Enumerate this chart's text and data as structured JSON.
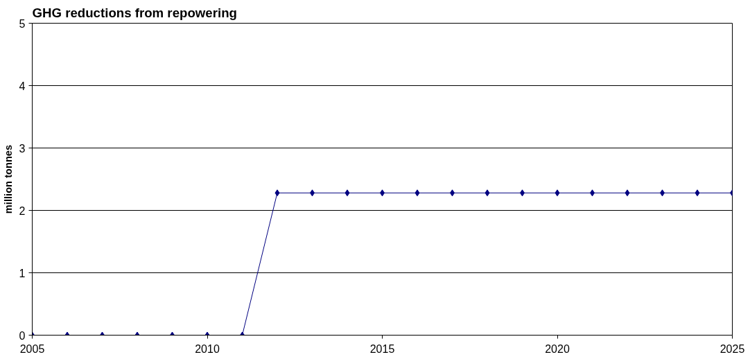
{
  "chart_data": {
    "type": "line",
    "title": "GHG reductions from repowering",
    "ylabel": "million tonnes",
    "x": [
      2005,
      2006,
      2007,
      2008,
      2009,
      2010,
      2011,
      2012,
      2013,
      2014,
      2015,
      2016,
      2017,
      2018,
      2019,
      2020,
      2021,
      2022,
      2023,
      2024,
      2025
    ],
    "series": [
      {
        "color": "#000080",
        "values": [
          0,
          0,
          0,
          0,
          0,
          0,
          0,
          2.28,
          2.28,
          2.28,
          2.28,
          2.28,
          2.28,
          2.28,
          2.28,
          2.28,
          2.28,
          2.28,
          2.28,
          2.28,
          2.28
        ]
      }
    ],
    "xlim": [
      2005,
      2025
    ],
    "ylim": [
      0,
      5
    ],
    "xticks": [
      2005,
      2010,
      2015,
      2020,
      2025
    ],
    "yticks": [
      0,
      1,
      2,
      3,
      4,
      5
    ],
    "grid": "y",
    "marker": "diamond",
    "line_style": "solid"
  }
}
